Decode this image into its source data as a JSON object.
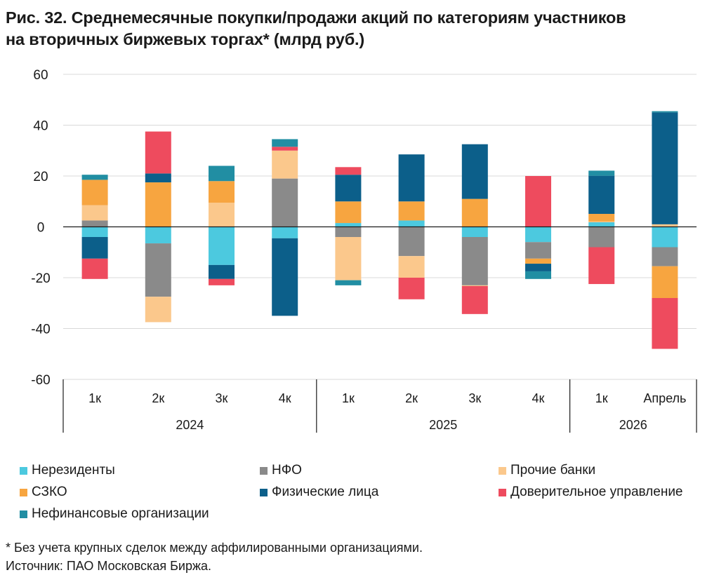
{
  "title_line1": "Рис. 32. Среднемесячные покупки/продажи акций по категориям участников",
  "title_line2": "на вторичных биржевых торгах* (млрд руб.)",
  "footnote_line1": "* Без учета крупных сделок между аффилированными организациями.",
  "footnote_line2": "Источник: ПАО Московская Биржа.",
  "chart_data": {
    "type": "bar",
    "stacked": true,
    "ylim": [
      -60,
      60
    ],
    "yticks": [
      60,
      40,
      20,
      0,
      -20,
      -40,
      -60
    ],
    "grid": true,
    "legend_position": "bottom",
    "categories": [
      "1к",
      "2к",
      "3к",
      "4к",
      "1к",
      "2к",
      "3к",
      "4к",
      "1к",
      "Апрель"
    ],
    "groups": [
      {
        "label": "2024",
        "count": 4
      },
      {
        "label": "2025",
        "count": 4
      },
      {
        "label": "2026",
        "count": 2
      }
    ],
    "series": [
      {
        "name": "Нерезиденты",
        "color": "#4cc9df",
        "values": [
          -4,
          -6.5,
          -15,
          -4.5,
          1.5,
          2.5,
          -4,
          -6,
          1.8,
          -8
        ]
      },
      {
        "name": "НФО",
        "color": "#8a8a8a",
        "values": [
          2.5,
          -21,
          0,
          19,
          -4,
          -11.5,
          -19,
          -6.5,
          -8,
          -7.5
        ]
      },
      {
        "name": "Прочие банки",
        "color": "#fbc88c",
        "values": [
          6,
          -10,
          9.5,
          11,
          -17,
          -8.5,
          -0.3,
          0,
          0.3,
          1
        ]
      },
      {
        "name": "СЗКО",
        "color": "#f7a540",
        "values": [
          10,
          17.5,
          8.5,
          0,
          8.5,
          7.5,
          11,
          -2,
          3,
          -12.5
        ]
      },
      {
        "name": "Физические лица",
        "color": "#0c5f8a",
        "values": [
          -8.5,
          3.5,
          -5.5,
          -30.5,
          10.5,
          18.5,
          21.5,
          -3,
          15,
          44
        ]
      },
      {
        "name": "Доверительное управление",
        "color": "#ee4b5e",
        "values": [
          -8,
          16.5,
          -2.5,
          1.5,
          3,
          -8.5,
          -11,
          20,
          -14.5,
          -20
        ]
      },
      {
        "name": "Нефинансовые организации",
        "color": "#218ea3",
        "values": [
          2,
          0,
          6,
          3,
          -2,
          0,
          0,
          -3,
          2,
          0.5
        ]
      }
    ]
  }
}
